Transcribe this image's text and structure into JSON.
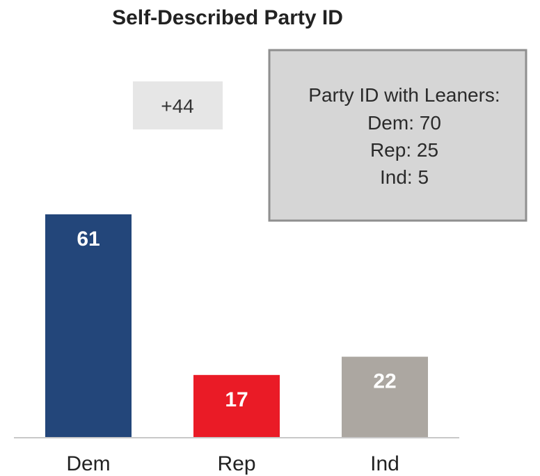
{
  "chart_data": {
    "type": "bar",
    "title": "Self-Described Party ID",
    "categories": [
      "Dem",
      "Rep",
      "Ind"
    ],
    "values": [
      61,
      17,
      22
    ],
    "colors": [
      "#23467a",
      "#ea1b26",
      "#aca7a1"
    ],
    "ylim": [
      0,
      61
    ],
    "annotations": {
      "difference": "+44",
      "note_lines": [
        "Party ID with Leaners:",
        "Dem: 70",
        "Rep: 25",
        "Ind: 5"
      ]
    },
    "grid": false,
    "legend": "none"
  }
}
